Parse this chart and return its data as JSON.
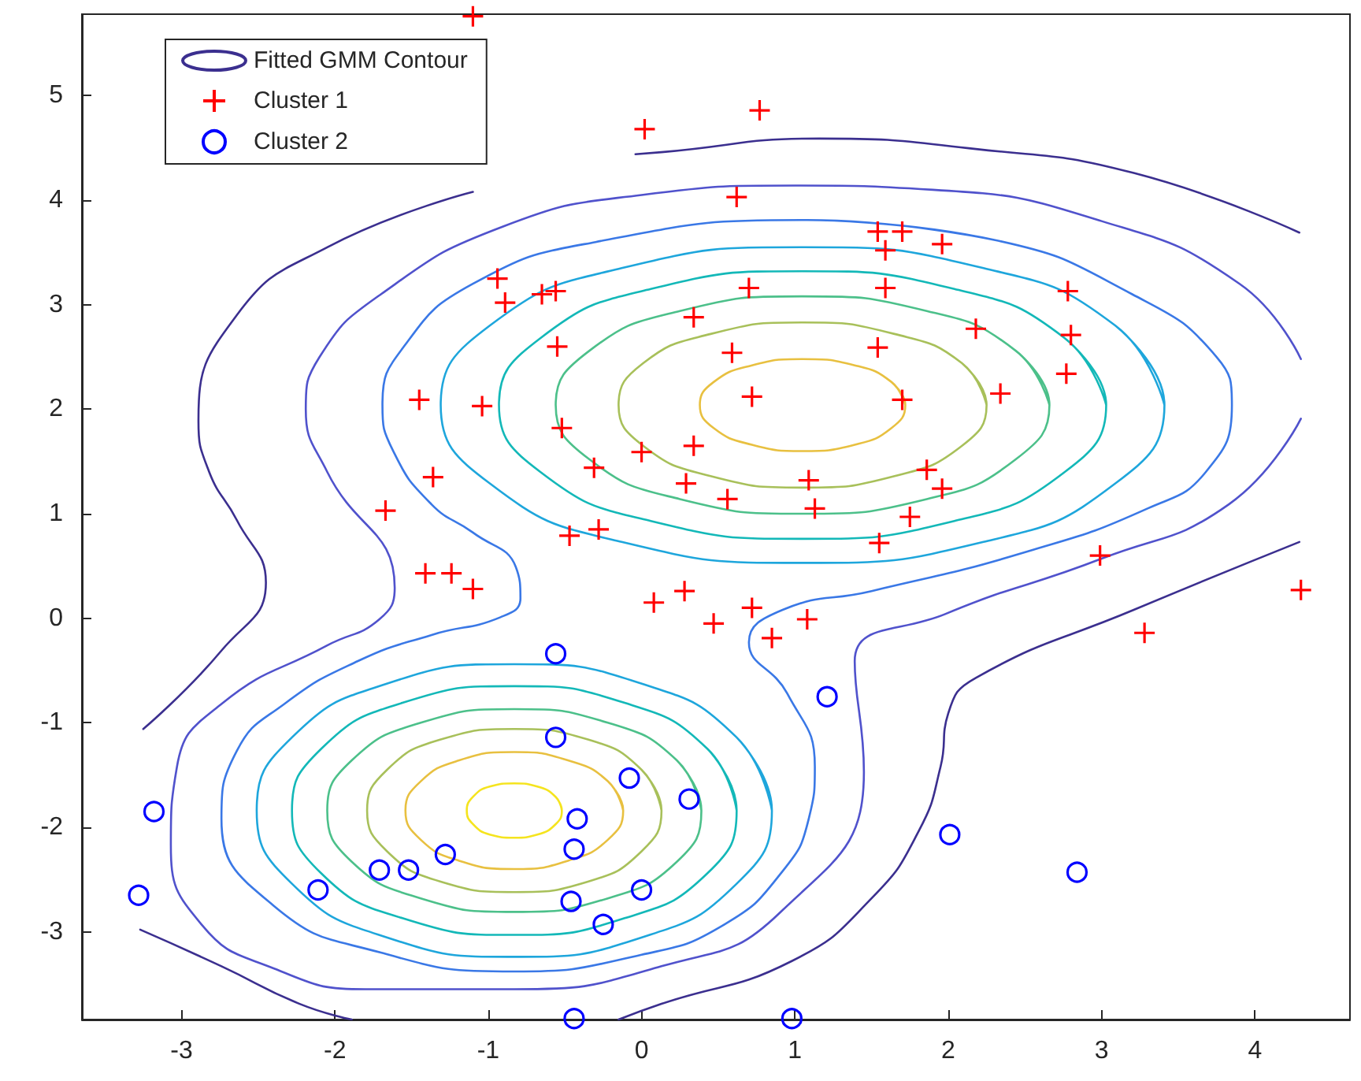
{
  "chart_data": {
    "type": "scatter",
    "xlim": [
      -3.65,
      4.62
    ],
    "ylim": [
      -3.84,
      5.78
    ],
    "xticks": [
      -3,
      -2,
      -1,
      0,
      1,
      2,
      3,
      4
    ],
    "yticks": [
      -3,
      -2,
      -1,
      0,
      1,
      2,
      3,
      4,
      5
    ],
    "legend": "top left",
    "series": [
      {
        "name": "Fitted GMM Contour",
        "type": "line",
        "marker": "none",
        "color": "#3b2f8f",
        "x": [
          4.29,
          3.21,
          2.18,
          1.16,
          0.13,
          -0.04
        ],
        "values": [
          3.69,
          4.26,
          4.49,
          4.59,
          4.46,
          4.44
        ]
      },
      {
        "type": "line",
        "marker": "none",
        "color": "#3b2f8f",
        "x": [
          -1.1,
          -2.05,
          -2.64,
          -2.89,
          -2.82,
          -2.64,
          -2.45,
          -2.74,
          -3.25
        ],
        "values": [
          4.08,
          3.55,
          2.9,
          1.89,
          1.4,
          0.94,
          0.34,
          -0.31,
          -1.06
        ]
      },
      {
        "type": "line",
        "marker": "none",
        "color": "#3b2f8f",
        "x": [
          -3.27,
          -2.74,
          -2.23,
          -1.89
        ],
        "values": [
          -2.98,
          -3.33,
          -3.69,
          -3.84
        ]
      },
      {
        "type": "line",
        "marker": "none",
        "color": "#3b2f8f",
        "x": [
          4.29,
          3.21,
          2.18,
          2.0,
          1.95,
          1.81,
          1.5,
          0.98,
          0.13,
          -0.15
        ],
        "values": [
          0.73,
          0.08,
          -0.57,
          -0.91,
          -1.42,
          -2.03,
          -2.68,
          -3.28,
          -3.69,
          -3.84
        ]
      },
      {
        "type": "line",
        "marker": "none",
        "color": "#5052cc",
        "x": [
          4.3,
          3.9,
          3.0,
          1.9,
          1.0,
          0,
          -0.9,
          -1.7,
          -2.1,
          -2.19,
          -2.05,
          -1.61,
          -1.71,
          -2.05,
          -2.74,
          -3.03,
          -3.07,
          -2.87,
          -2.4,
          -1.8,
          -0.83,
          0.13,
          0.9,
          1.45,
          1.39,
          1.98,
          3.0,
          3.83,
          4.3
        ],
        "values": [
          2.48,
          3.2,
          3.8,
          4.1,
          4.14,
          4.05,
          3.75,
          3.1,
          2.5,
          2.0,
          1.4,
          0.29,
          -0.01,
          -0.26,
          -0.82,
          -1.42,
          -2.17,
          -2.93,
          -3.35,
          -3.55,
          -3.55,
          -3.33,
          -2.82,
          -1.47,
          -0.41,
          0.04,
          0.57,
          1.09,
          1.91
        ]
      },
      {
        "type": "line",
        "marker": "none",
        "color": "#3a78e6",
        "x": [
          1.08,
          2.3,
          3.2,
          3.75,
          3.85,
          3.68,
          3.3,
          2.52,
          1.5,
          0.92,
          0.7,
          0.95,
          1.13,
          1.09,
          0.92,
          0.54,
          0,
          -0.83,
          -1.7,
          -2.4,
          -2.74,
          -2.64,
          -2.33,
          -1.85,
          -1.37,
          -0.92,
          -0.79,
          -0.82,
          -1.1,
          -1.37,
          -1.62,
          -1.69,
          -1.55,
          -1.1,
          -0.3,
          1.08,
          2.3
        ],
        "values": [
          3.81,
          3.62,
          3.1,
          2.5,
          2.04,
          1.4,
          1.05,
          0.64,
          0.26,
          0.08,
          -0.23,
          -0.72,
          -1.42,
          -1.92,
          -2.42,
          -2.93,
          -3.22,
          -3.38,
          -3.2,
          -2.75,
          -1.92,
          -1.27,
          -0.82,
          -0.41,
          -0.16,
          0.01,
          0.19,
          0.49,
          0.82,
          1.09,
          1.6,
          2.04,
          2.6,
          3.2,
          3.6,
          3.81,
          3.62
        ]
      },
      {
        "type": "line",
        "marker": "none",
        "color": "#1ea6dc",
        "x": [
          3.41,
          3.09,
          2.23,
          1.05,
          -0.13,
          -0.99,
          -1.31,
          -0.99,
          -0.13,
          1.05,
          2.23,
          3.09,
          3.41,
          3.09
        ],
        "values": [
          2.04,
          2.8,
          3.35,
          3.55,
          3.35,
          2.8,
          2.04,
          1.29,
          0.73,
          0.53,
          0.73,
          1.29,
          2.04,
          2.8
        ]
      },
      {
        "type": "line",
        "marker": "none",
        "color": "#13b8b8",
        "x": [
          3.03,
          2.76,
          2.04,
          1.05,
          0.06,
          -0.66,
          -0.93,
          -0.66,
          0.06,
          1.05,
          2.04,
          2.76,
          3.03,
          2.76
        ],
        "values": [
          2.04,
          2.68,
          3.15,
          3.32,
          3.15,
          2.68,
          2.04,
          1.4,
          0.93,
          0.76,
          0.93,
          1.4,
          2.04,
          2.68
        ]
      },
      {
        "type": "line",
        "marker": "none",
        "color": "#4cc08a",
        "x": [
          2.66,
          2.44,
          1.86,
          1.05,
          0.25,
          -0.34,
          -0.56,
          -0.34,
          0.25,
          1.05,
          1.86,
          2.44,
          2.66,
          2.44
        ],
        "values": [
          2.04,
          2.56,
          2.94,
          3.08,
          2.94,
          2.56,
          2.04,
          1.52,
          1.14,
          1.0,
          1.14,
          1.52,
          2.04,
          2.56
        ]
      },
      {
        "type": "line",
        "marker": "none",
        "color": "#a8c05a",
        "x": [
          2.25,
          2.09,
          1.65,
          1.05,
          0.45,
          0.01,
          -0.15,
          0.01,
          0.45,
          1.05,
          1.65,
          2.09,
          2.25,
          2.09
        ],
        "values": [
          2.04,
          2.44,
          2.72,
          2.83,
          2.72,
          2.44,
          2.04,
          1.65,
          1.36,
          1.25,
          1.36,
          1.65,
          2.04,
          2.44
        ]
      },
      {
        "type": "line",
        "marker": "none",
        "color": "#e8c040",
        "x": [
          1.72,
          1.63,
          1.39,
          1.05,
          0.72,
          0.47,
          0.38,
          0.47,
          0.72,
          1.05,
          1.39,
          1.63,
          1.72,
          1.63
        ],
        "values": [
          2.04,
          2.26,
          2.42,
          2.48,
          2.42,
          2.26,
          2.04,
          1.82,
          1.66,
          1.6,
          1.66,
          1.82,
          2.04,
          2.26
        ]
      },
      {
        "type": "line",
        "marker": "none",
        "color": "#1ea6dc",
        "x": [
          0.85,
          0.62,
          0.01,
          -0.83,
          -1.67,
          -2.28,
          -2.51,
          -2.28,
          -1.67,
          -0.83,
          0.01,
          0.62,
          0.85,
          0.62
        ],
        "values": [
          -1.84,
          -1.14,
          -0.63,
          -0.44,
          -0.63,
          -1.14,
          -1.84,
          -2.54,
          -3.05,
          -3.24,
          -3.05,
          -2.54,
          -1.84,
          -1.14
        ]
      },
      {
        "type": "line",
        "marker": "none",
        "color": "#13b8b8",
        "x": [
          0.62,
          0.43,
          -0.11,
          -0.83,
          -1.56,
          -2.09,
          -2.28,
          -2.09,
          -1.56,
          -0.83,
          -0.11,
          0.43,
          0.62,
          0.43
        ],
        "values": [
          -1.84,
          -1.25,
          -0.81,
          -0.65,
          -0.81,
          -1.25,
          -1.84,
          -2.44,
          -2.87,
          -3.03,
          -2.87,
          -2.44,
          -1.84,
          -1.25
        ]
      },
      {
        "type": "line",
        "marker": "none",
        "color": "#4cc08a",
        "x": [
          0.39,
          0.23,
          -0.22,
          -0.83,
          -1.44,
          -1.89,
          -2.05,
          -1.89,
          -1.44,
          -0.83,
          -0.22,
          0.23,
          0.39,
          0.23
        ],
        "values": [
          -1.84,
          -1.36,
          -1.0,
          -0.87,
          -1.0,
          -1.36,
          -1.84,
          -2.33,
          -2.68,
          -2.81,
          -2.68,
          -2.33,
          -1.84,
          -1.36
        ]
      },
      {
        "type": "line",
        "marker": "none",
        "color": "#a8c05a",
        "x": [
          0.13,
          0,
          -0.35,
          -0.83,
          -1.31,
          -1.66,
          -1.79,
          -1.66,
          -1.31,
          -0.83,
          -0.35,
          0,
          0.13,
          0
        ],
        "values": [
          -1.84,
          -1.45,
          -1.16,
          -1.06,
          -1.16,
          -1.45,
          -1.84,
          -2.23,
          -2.52,
          -2.62,
          -2.52,
          -2.23,
          -1.84,
          -1.45
        ]
      },
      {
        "type": "line",
        "marker": "none",
        "color": "#e8c040",
        "x": [
          -0.12,
          -0.22,
          -0.48,
          -0.83,
          -1.19,
          -1.44,
          -1.54,
          -1.44,
          -1.19,
          -0.83,
          -0.48,
          -0.22,
          -0.12,
          -0.22
        ],
        "values": [
          -1.84,
          -1.56,
          -1.36,
          -1.28,
          -1.36,
          -1.56,
          -1.84,
          -2.12,
          -2.32,
          -2.4,
          -2.32,
          -2.12,
          -1.84,
          -1.56
        ]
      },
      {
        "type": "line",
        "marker": "none",
        "color": "#f5e41e",
        "x": [
          -0.52,
          -0.56,
          -0.68,
          -0.83,
          -0.99,
          -1.1,
          -1.14,
          -1.1,
          -0.99,
          -0.83,
          -0.68,
          -0.56,
          -0.52,
          -0.56
        ],
        "values": [
          -1.84,
          -1.71,
          -1.61,
          -1.58,
          -1.61,
          -1.71,
          -1.84,
          -1.97,
          -2.07,
          -2.1,
          -2.07,
          -1.97,
          -1.84,
          -1.71
        ]
      },
      {
        "name": "Cluster 1",
        "marker": "cross",
        "color": "#ff0000",
        "x": [
          -1.1,
          0.02,
          0.77,
          0.62,
          -0.94,
          -0.89,
          -0.65,
          -0.56,
          0.34,
          0.7,
          -0.55,
          0.59,
          -1.45,
          -1.04,
          0.72,
          -0.52,
          -0.31,
          -1.36,
          -1.67,
          0.0,
          0.34,
          0.29,
          0.56,
          -1.41,
          -1.24,
          -1.1,
          -0.47,
          -0.28,
          0.08,
          0.28,
          0.47,
          0.72,
          0.85,
          1.08,
          1.09,
          1.13,
          1.55,
          1.75,
          1.86,
          1.96,
          1.7,
          1.54,
          2.34,
          2.18,
          2.77,
          2.8,
          2.78,
          1.96,
          1.54,
          1.7,
          1.59,
          1.59,
          2.99,
          3.28,
          4.3
        ],
        "values": [
          5.76,
          4.68,
          4.86,
          4.03,
          3.25,
          3.02,
          3.1,
          3.13,
          2.88,
          3.16,
          2.6,
          2.54,
          2.09,
          2.03,
          2.12,
          1.82,
          1.44,
          1.35,
          1.03,
          1.59,
          1.65,
          1.29,
          1.14,
          0.43,
          0.43,
          0.28,
          0.79,
          0.85,
          0.15,
          0.26,
          -0.05,
          0.1,
          -0.19,
          -0.01,
          1.32,
          1.05,
          0.72,
          0.97,
          1.42,
          1.24,
          2.09,
          2.59,
          2.15,
          2.77,
          2.34,
          2.71,
          3.13,
          3.58,
          3.7,
          3.7,
          3.52,
          3.16,
          0.6,
          -0.14,
          0.27
        ]
      },
      {
        "name": "Cluster 2",
        "marker": "circle",
        "color": "#0000ff",
        "x": [
          -0.56,
          -0.56,
          -0.08,
          0.31,
          -0.42,
          -0.44,
          -3.18,
          -1.28,
          -1.71,
          -1.52,
          -2.11,
          -3.28,
          -0.46,
          0.0,
          -0.25,
          -0.44,
          1.21,
          2.01,
          2.84,
          0.98
        ],
        "values": [
          -0.34,
          -1.14,
          -1.53,
          -1.73,
          -1.92,
          -2.21,
          -1.85,
          -2.26,
          -2.41,
          -2.41,
          -2.6,
          -2.65,
          -2.71,
          -2.6,
          -2.93,
          -3.83,
          -0.75,
          -2.07,
          -2.43,
          -3.83
        ]
      }
    ]
  }
}
